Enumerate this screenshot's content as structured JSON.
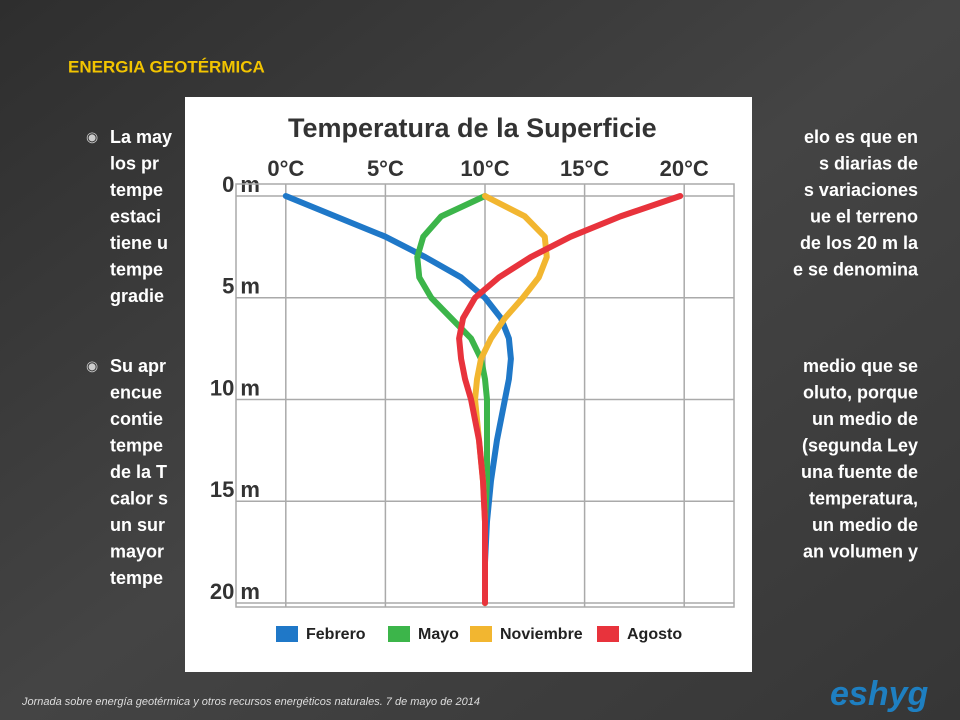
{
  "slide": {
    "title": "ENERGIA GEOTÉRMICA",
    "paragraphs": [
      [
        [
          "La may",
          "elo es que en"
        ],
        [
          "los pr",
          "s diarias de"
        ],
        [
          "tempe",
          "s variaciones"
        ],
        [
          "estaci",
          "ue el terreno"
        ],
        [
          "tiene u",
          "de los 20 m la"
        ],
        [
          "tempe",
          "e se denomina"
        ],
        [
          "gradie",
          ""
        ]
      ],
      [
        [
          "Su apr",
          "medio que se"
        ],
        [
          "encue",
          "oluto, porque"
        ],
        [
          "contie",
          "un medio de"
        ],
        [
          "tempe",
          "(segunda Ley"
        ],
        [
          "de la T",
          "una fuente de"
        ],
        [
          "calor s",
          "temperatura,"
        ],
        [
          "un sur",
          "un medio de"
        ],
        [
          "mayor",
          "an volumen y"
        ],
        [
          "tempe",
          ""
        ]
      ]
    ],
    "footer": "Jornada sobre energía geotérmica y otros recursos energéticos naturales. 7 de mayo de 2014",
    "logo": "eshyg"
  },
  "chart_data": {
    "type": "line",
    "title": "Temperatura de la Superficie",
    "y": [
      0,
      1,
      2,
      3,
      4,
      5,
      6,
      7,
      8,
      9,
      10,
      12,
      14,
      16,
      18,
      20
    ],
    "series": [
      {
        "name": "Febrero",
        "color": "#1f78c8",
        "values": [
          0,
          2.5,
          5,
          7,
          8.8,
          10,
          10.8,
          11.2,
          11.3,
          11.2,
          11,
          10.6,
          10.3,
          10.1,
          10,
          10
        ]
      },
      {
        "name": "Mayo",
        "color": "#3cb54a",
        "values": [
          10,
          7.8,
          6.9,
          6.6,
          6.7,
          7.3,
          8.3,
          9.3,
          9.8,
          10,
          10.1,
          10.1,
          10.1,
          10,
          10,
          10
        ]
      },
      {
        "name": "Noviembre",
        "color": "#f2b630",
        "values": [
          10,
          12,
          13,
          13.1,
          12.7,
          11.9,
          11,
          10.3,
          9.8,
          9.6,
          9.5,
          9.7,
          9.9,
          10,
          10,
          10
        ]
      },
      {
        "name": "Agosto",
        "color": "#e8333c",
        "values": [
          19.8,
          16.8,
          14.3,
          12.3,
          10.7,
          9.5,
          8.9,
          8.7,
          8.8,
          9,
          9.3,
          9.7,
          9.9,
          10,
          10,
          10
        ]
      }
    ],
    "xlim": [
      -2.5,
      22.5
    ],
    "ylim": [
      0,
      20
    ],
    "xticks": [
      {
        "value": 0,
        "label": "0°C"
      },
      {
        "value": 5,
        "label": "5°C"
      },
      {
        "value": 10,
        "label": "10°C"
      },
      {
        "value": 15,
        "label": "15°C"
      },
      {
        "value": 20,
        "label": "20°C"
      }
    ],
    "yticks": [
      {
        "value": 0,
        "label": "0 m"
      },
      {
        "value": 5,
        "label": "5 m"
      },
      {
        "value": 10,
        "label": "10 m"
      },
      {
        "value": 15,
        "label": "15 m"
      },
      {
        "value": 20,
        "label": "20 m"
      }
    ],
    "grid": true,
    "legend": "bottom"
  }
}
